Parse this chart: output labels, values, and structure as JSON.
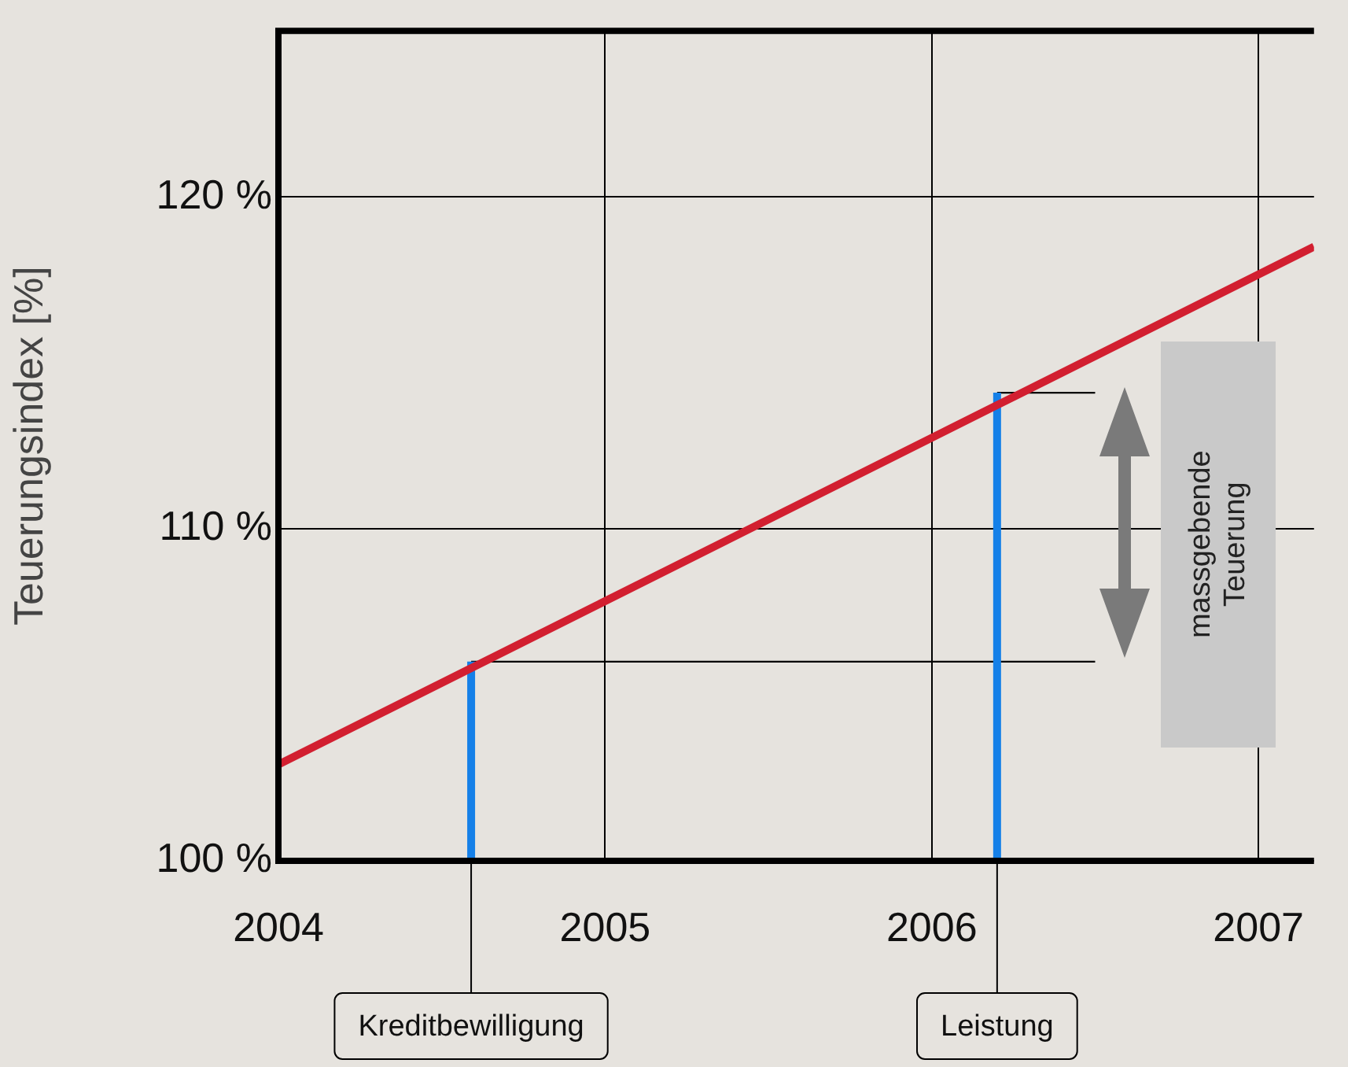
{
  "chart_data": {
    "type": "line",
    "ylabel": "Teuerungsindex [%]",
    "xlim": [
      2004,
      2007.17
    ],
    "xticks": [
      2004,
      2005,
      2006,
      2007
    ],
    "ylim": [
      100,
      125
    ],
    "yticks": [
      {
        "value": 100,
        "label": "100 %"
      },
      {
        "value": 110,
        "label": "110 %"
      },
      {
        "value": 120,
        "label": "120 %"
      }
    ],
    "grid": true,
    "legend": false,
    "marker": "none",
    "line_style": "solid",
    "series": [
      {
        "color": "#d21f30",
        "x": [
          2004,
          2007.17
        ],
        "values": [
          102.9,
          118.5
        ]
      },
      {
        "color": "#1580e8",
        "x": [
          2004.59,
          2004.59
        ],
        "values": [
          100,
          106
        ]
      },
      {
        "color": "#1580e8",
        "x": [
          2006.2,
          2006.2
        ],
        "values": [
          100,
          114.1
        ]
      },
      {
        "color": "#000000",
        "x": [
          2004.59,
          2006.5
        ],
        "values": [
          106,
          106
        ]
      },
      {
        "color": "#000000",
        "x": [
          2006.2,
          2006.5
        ],
        "values": [
          114.1,
          114.1
        ]
      }
    ],
    "annotations": [
      {
        "text": "Kreditbewilligung",
        "x": 2004.59,
        "y": 100
      },
      {
        "text": "Leistung",
        "x": 2006.2,
        "y": 100
      },
      "massgebende Teuerung"
    ]
  }
}
